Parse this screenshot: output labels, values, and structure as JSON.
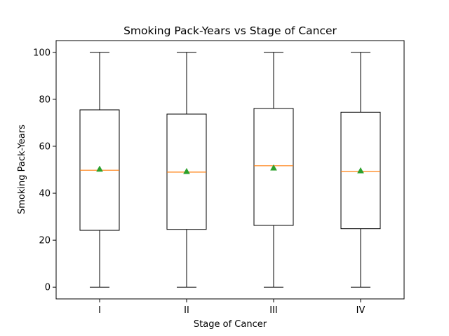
{
  "chart_data": {
    "type": "box",
    "title": "Smoking Pack-Years vs Stage of Cancer",
    "xlabel": "Stage of Cancer",
    "ylabel": "Smoking Pack-Years",
    "ylim": [
      -5,
      105
    ],
    "yticks": [
      0,
      20,
      40,
      60,
      80,
      100
    ],
    "grid": false,
    "legend": "none",
    "categories": [
      "I",
      "II",
      "III",
      "IV"
    ],
    "boxes": [
      {
        "category": "I",
        "whisker_low": 0,
        "q1": 24.2,
        "median": 49.8,
        "q3": 75.5,
        "whisker_high": 100,
        "mean": 50.3
      },
      {
        "category": "II",
        "whisker_low": 0,
        "q1": 24.6,
        "median": 49.0,
        "q3": 73.7,
        "whisker_high": 100,
        "mean": 49.3
      },
      {
        "category": "III",
        "whisker_low": 0,
        "q1": 26.3,
        "median": 51.7,
        "q3": 76.1,
        "whisker_high": 100,
        "mean": 50.8
      },
      {
        "category": "IV",
        "whisker_low": 0,
        "q1": 24.9,
        "median": 49.3,
        "q3": 74.5,
        "whisker_high": 100,
        "mean": 49.6
      }
    ],
    "colors": {
      "box": "#000000",
      "median": "#ff7f0e",
      "mean": "#2ca02c"
    }
  }
}
